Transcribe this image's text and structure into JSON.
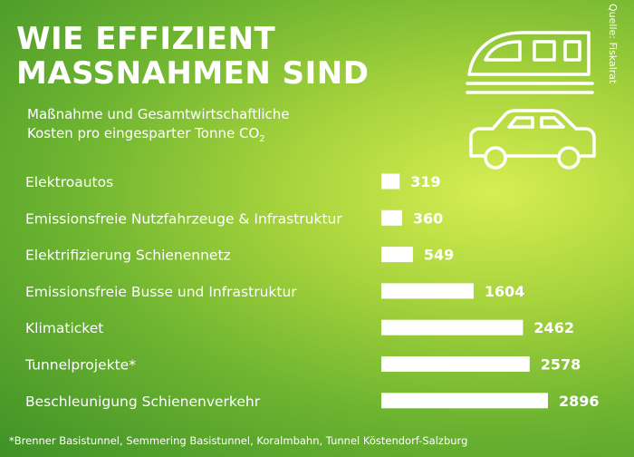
{
  "title_line1": "WIE EFFIZIENT",
  "title_line2": "MASSNAHMEN SIND",
  "subtitle_line1": "Maßnahme und Gesamtwirtschaftliche",
  "subtitle_line2_prefix": "Kosten pro eingesparter Tonne CO",
  "subtitle_line2_sub": "2",
  "source": "Quelle: Fiskalrat",
  "footnote": "*Brenner Basistunnel, Semmering Basistunnel, Koralmbahn, Tunnel Köstendorf-Salzburg",
  "icons": [
    "train-icon",
    "car-icon"
  ],
  "colors": {
    "bg_light": "#d7ee53",
    "bg_dark": "#3f9127",
    "bar": "#ffffff",
    "text": "#ffffff"
  },
  "chart_data": {
    "type": "bar",
    "orientation": "horizontal",
    "categories": [
      "Elektroautos",
      "Emissionsfreie Nutzfahrzeuge & Infrastruktur",
      "Elektrifizierung Schienennetz",
      "Emissionsfreie Busse und Infrastruktur",
      "Klimaticket",
      "Tunnelprojekte*",
      "Beschleunigung Schienenverkehr"
    ],
    "values": [
      319,
      360,
      549,
      1604,
      2462,
      2578,
      2896
    ],
    "labels": [
      "319",
      "360",
      "549",
      "1604",
      "2462",
      "2578",
      "2896"
    ],
    "xlim": [
      0,
      3000
    ],
    "grid": false,
    "legend": "none"
  }
}
